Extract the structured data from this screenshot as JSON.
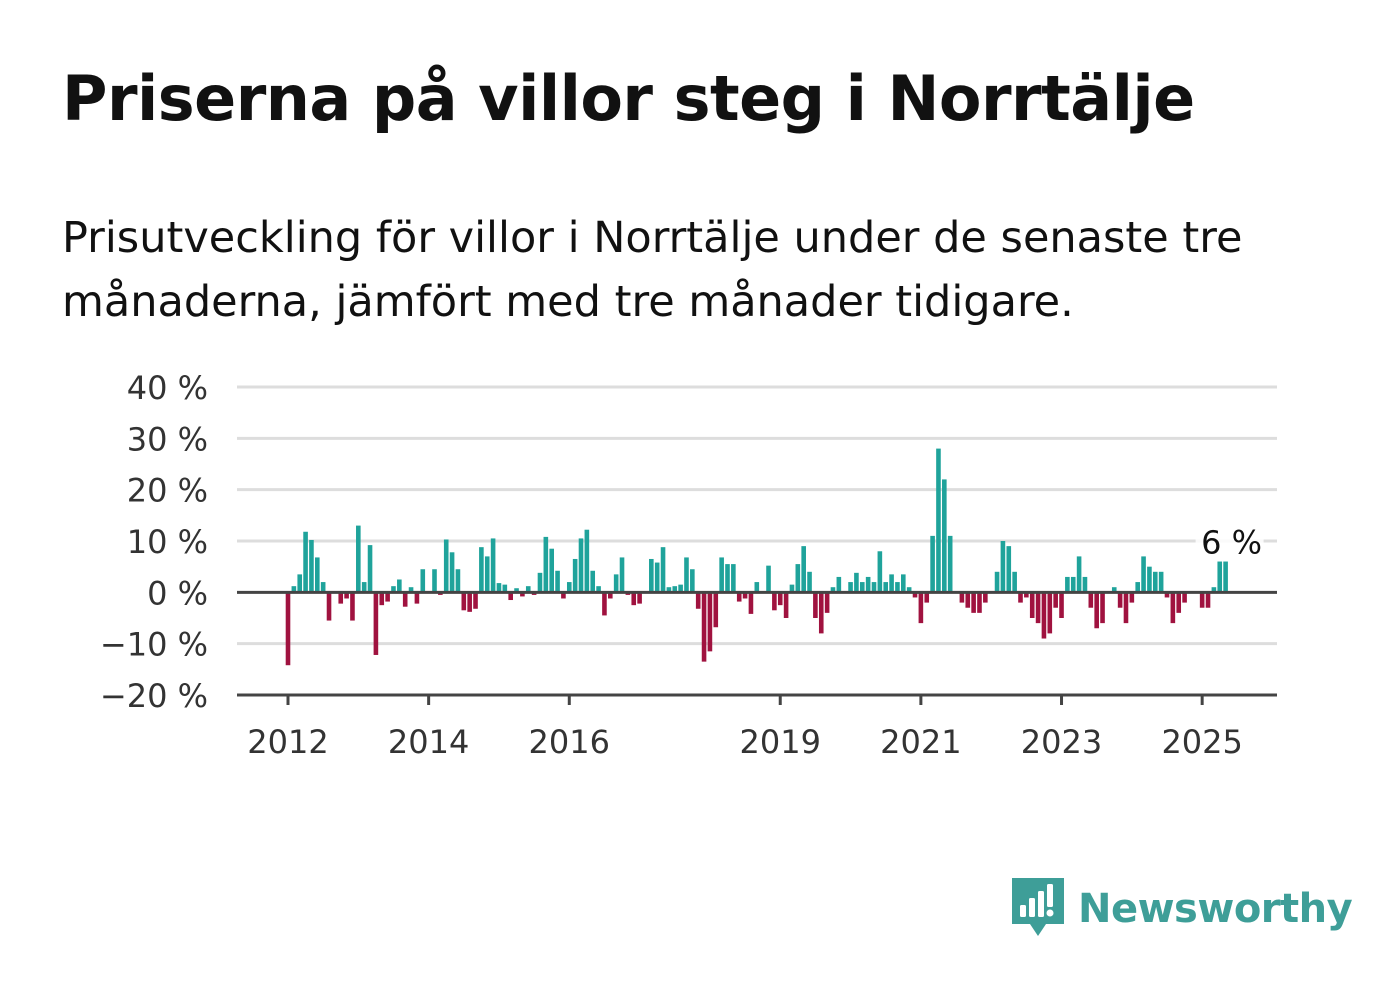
{
  "title": "Priserna på villor steg i Norrtälje",
  "subtitle": "Prisutveckling för villor i Norrtälje under de senaste tre månaderna, jämfört med tre månader tidigare.",
  "brand": {
    "name": "Newsworthy",
    "color": "#3e9e98"
  },
  "colors": {
    "positive": "#1fa39b",
    "negative": "#a0123f",
    "grid": "#dddddd",
    "axis": "#444444"
  },
  "chart_data": {
    "type": "bar",
    "title": "Priserna på villor steg i Norrtälje",
    "subtitle": "Prisutveckling för villor i Norrtälje under de senaste tre månaderna, jämfört med tre månader tidigare.",
    "unit": "%",
    "start": "2012-01",
    "frequency": "monthly",
    "ylim": [
      -20,
      40
    ],
    "yticks": [
      -20,
      -10,
      0,
      10,
      20,
      30,
      40
    ],
    "ytick_labels": [
      "−20 %",
      "−10 %",
      "0 %",
      "10 %",
      "20 %",
      "30 %",
      "40 %"
    ],
    "xticks": [
      "2012",
      "2014",
      "2016",
      "2019",
      "2021",
      "2023",
      "2025"
    ],
    "grid": true,
    "last_value_label": "6 %",
    "series": [
      {
        "values": [
          -14.2,
          1.2,
          3.5,
          11.8,
          10.2,
          6.8,
          2.0,
          -5.5,
          0,
          -2.2,
          -1.2,
          -5.5,
          13.0,
          2.0,
          9.2,
          -12.2,
          -2.5,
          -1.8,
          1.2,
          2.5,
          -2.8,
          1.0,
          -2.2,
          4.5,
          0,
          4.5,
          -0.5,
          10.3,
          7.8,
          4.5,
          -3.5,
          -3.8,
          -3.2,
          8.8,
          7.0,
          10.5,
          1.8,
          1.5,
          -1.5,
          0.8,
          -0.8,
          1.2,
          -0.5,
          3.8,
          10.8,
          8.5,
          4.2,
          -1.2,
          2.0,
          6.5,
          10.5,
          12.2,
          4.2,
          1.2,
          -4.5,
          -1.2,
          3.5,
          6.8,
          -0.5,
          -2.5,
          -2.2,
          0,
          6.5,
          5.8,
          8.8,
          1.0,
          1.2,
          1.5,
          6.8,
          4.5,
          -3.2,
          -13.5,
          -11.5,
          -6.8,
          6.8,
          5.5,
          5.5,
          -1.8,
          -1.2,
          -4.2,
          2.0,
          0,
          5.2,
          -3.5,
          -2.5,
          -5.0,
          1.5,
          5.5,
          9.0,
          4.0,
          -5.0,
          -8.0,
          -4.0,
          1.0,
          3.0,
          0,
          2.0,
          3.8,
          2.0,
          3.0,
          2.0,
          8.0,
          2.0,
          3.5,
          2.0,
          3.5,
          1.0,
          -1.0,
          -6.0,
          -2.0,
          11.0,
          28.0,
          22.0,
          11.0,
          0,
          -2.0,
          -3.0,
          -4.0,
          -4.0,
          -2.0,
          0,
          4.0,
          10.0,
          9.0,
          4.0,
          -2.0,
          -1.0,
          -5.0,
          -6.0,
          -9.0,
          -8.0,
          -3.0,
          -5.0,
          3.0,
          3.0,
          7.0,
          3.0,
          -3.0,
          -7.0,
          -6.0,
          0,
          1.0,
          -3.0,
          -6.0,
          -2.0,
          2.0,
          7.0,
          5.0,
          4.0,
          4.0,
          -1.0,
          -6.0,
          -4.0,
          -2.0,
          0,
          0,
          -3.0,
          -3.0,
          1.0,
          6.0,
          6.0
        ]
      }
    ]
  }
}
